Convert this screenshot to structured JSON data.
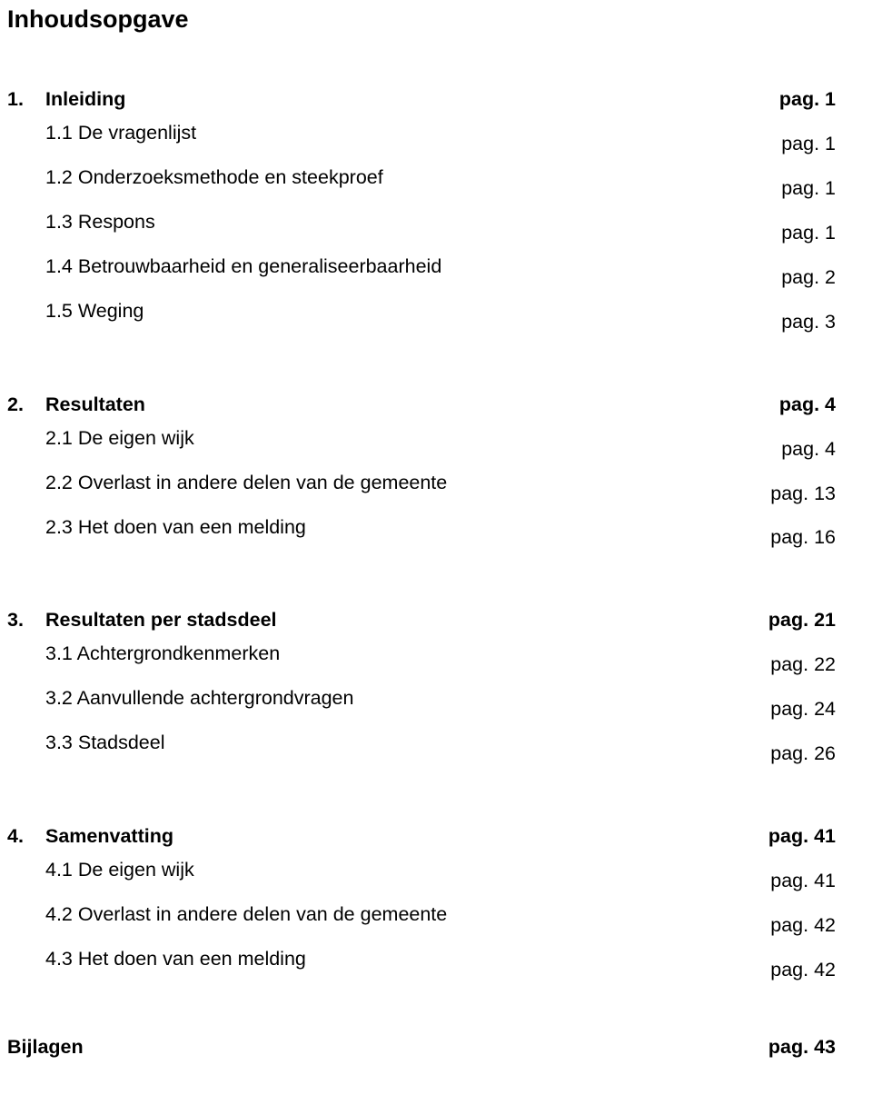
{
  "title": "Inhoudsopgave",
  "sections": [
    {
      "head": {
        "num": "1.",
        "label": "Inleiding",
        "page": "pag. 1"
      },
      "items": [
        {
          "num": "",
          "label": "1.1 De vragenlijst",
          "page": "pag. 1"
        },
        {
          "num": "",
          "label": "1.2 Onderzoeksmethode en steekproef",
          "page": "pag. 1"
        },
        {
          "num": "",
          "label": "1.3 Respons",
          "page": "pag. 1"
        },
        {
          "num": "",
          "label": "1.4 Betrouwbaarheid en generaliseerbaarheid",
          "page": "pag. 2"
        },
        {
          "num": "",
          "label": "1.5 Weging",
          "page": "pag. 3"
        }
      ]
    },
    {
      "head": {
        "num": "2.",
        "label": "Resultaten",
        "page": "pag. 4"
      },
      "items": [
        {
          "num": "",
          "label": "2.1 De eigen wijk",
          "page": "pag. 4"
        },
        {
          "num": "",
          "label": "2.2 Overlast in andere delen van de gemeente",
          "page": "pag. 13"
        },
        {
          "num": "",
          "label": "2.3 Het doen van een melding",
          "page": "pag. 16"
        }
      ]
    },
    {
      "head": {
        "num": "3.",
        "label": "Resultaten per stadsdeel",
        "page": "pag. 21"
      },
      "items": [
        {
          "num": "",
          "label": "3.1 Achtergrondkenmerken",
          "page": "pag. 22"
        },
        {
          "num": "",
          "label": "3.2 Aanvullende achtergrondvragen",
          "page": "pag. 24"
        },
        {
          "num": "",
          "label": "3.3 Stadsdeel",
          "page": "pag. 26"
        }
      ]
    },
    {
      "head": {
        "num": "4.",
        "label": "Samenvatting",
        "page": "pag. 41"
      },
      "items": [
        {
          "num": "",
          "label": "4.1 De eigen wijk",
          "page": "pag. 41"
        },
        {
          "num": "",
          "label": "4.2 Overlast in andere delen van de gemeente",
          "page": "pag. 42"
        },
        {
          "num": "",
          "label": "4.3 Het doen van een melding",
          "page": "pag. 42"
        }
      ]
    }
  ],
  "footer": {
    "label": "Bijlagen",
    "page": "pag. 43"
  }
}
